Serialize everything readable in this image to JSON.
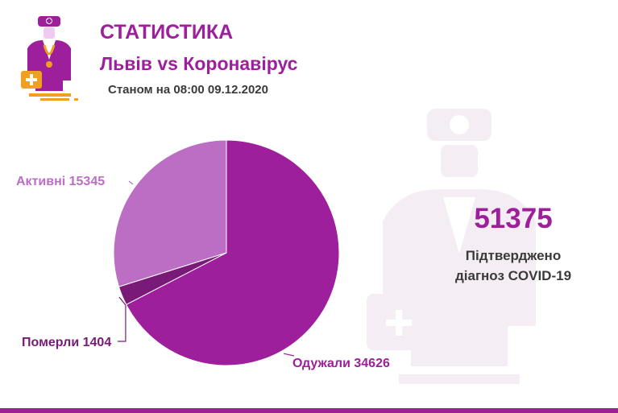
{
  "header": {
    "title": "СТАТИСТИКА",
    "subtitle": "Львів vs Коронавірус",
    "date": "Станом на 08:00 09.12.2020"
  },
  "summary": {
    "total": "51375",
    "caption_line1": "Підтверджено",
    "caption_line2": "діагноз COVID-19"
  },
  "colors": {
    "brand": "#9e1f9b",
    "recovered": "#9e1f9b",
    "active": "#bb6ec4",
    "deaths": "#7a1a78",
    "text_dark": "#3a3a3a",
    "watermark": "#f4eef4"
  },
  "icons": [
    "doctor-logo-icon",
    "doctor-watermark-icon"
  ],
  "chart_data": {
    "type": "pie",
    "title": "",
    "slices": [
      {
        "name": "Одужали",
        "value": 34626,
        "label": "Одужали 34626",
        "color": "#9e1f9b"
      },
      {
        "name": "Померли",
        "value": 1404,
        "label": "Померли 1404",
        "color": "#7a1a78"
      },
      {
        "name": "Активні",
        "value": 15345,
        "label": "Активні 15345",
        "color": "#bb6ec4"
      }
    ],
    "start_angle": "12 o'clock",
    "direction": "clockwise",
    "legend": "none"
  }
}
